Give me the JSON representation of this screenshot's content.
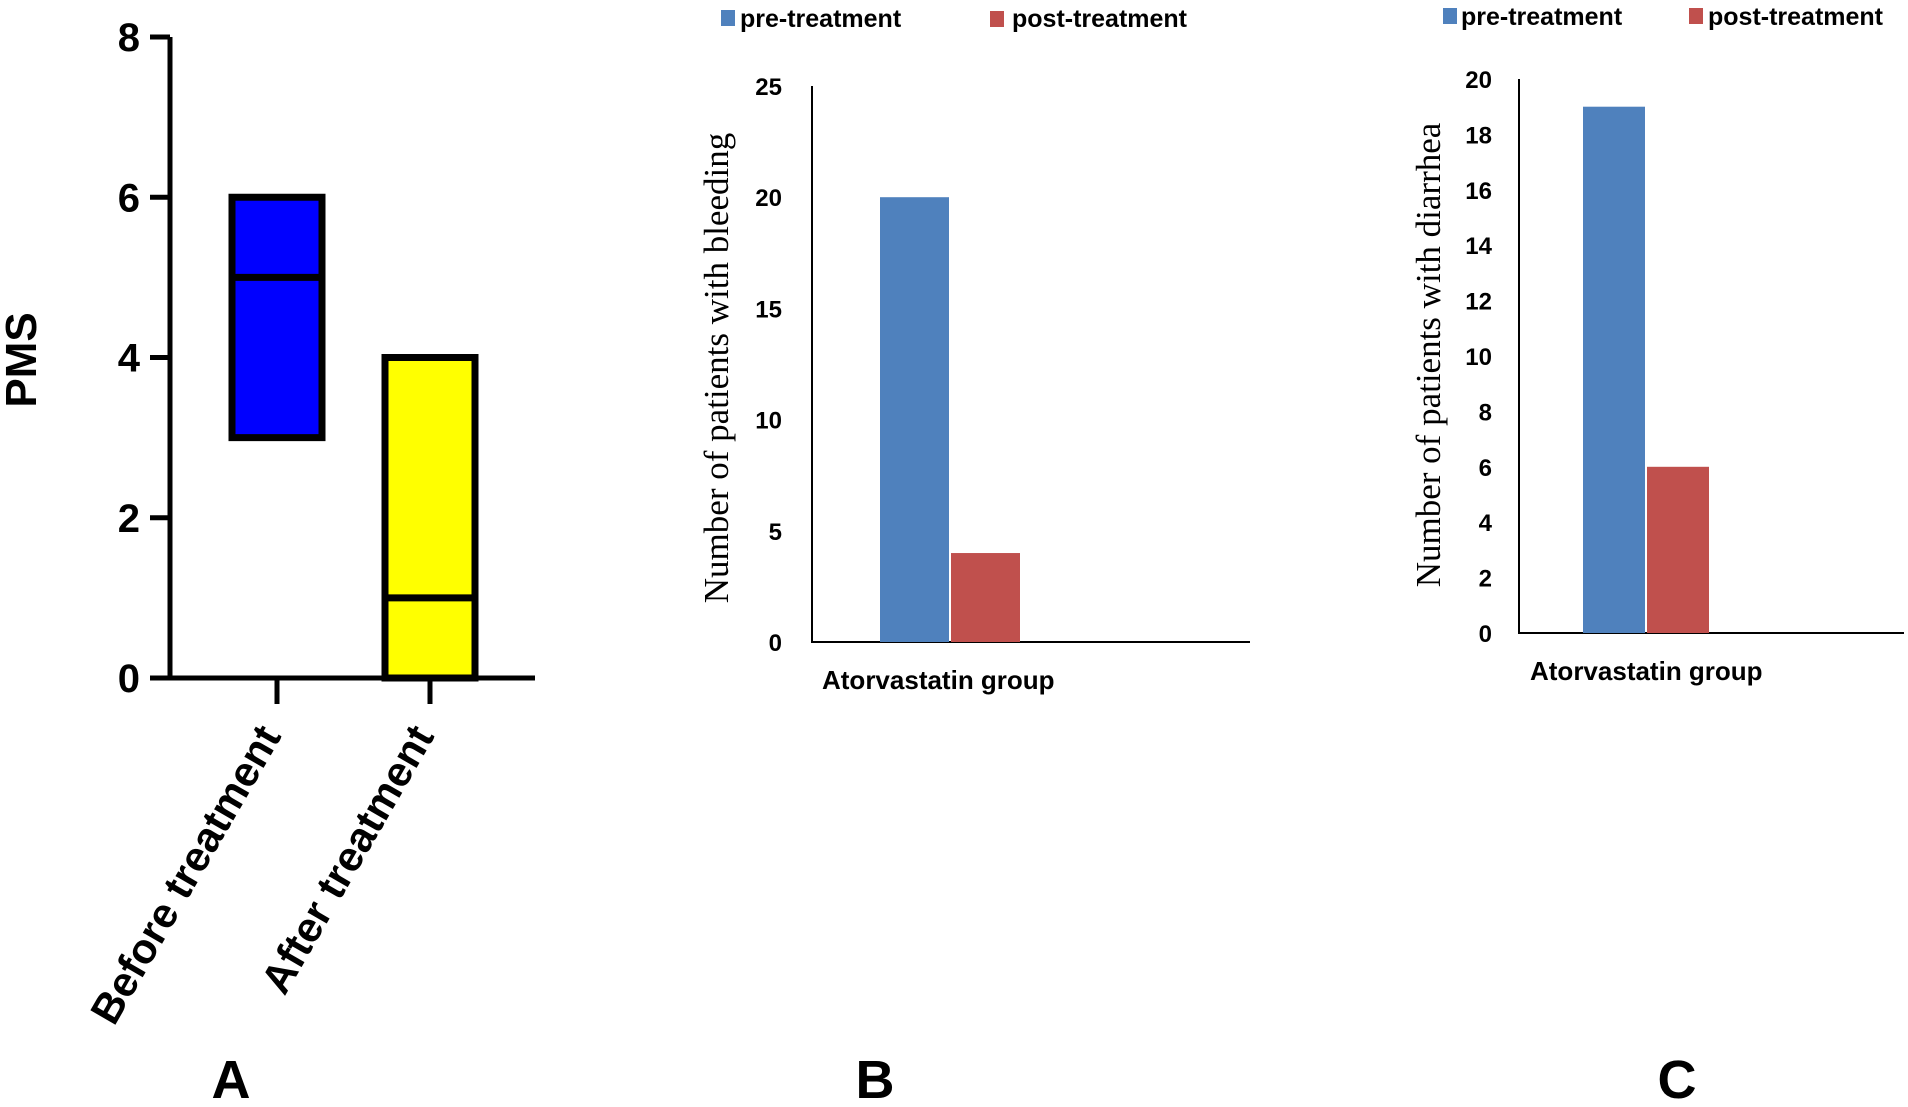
{
  "chart_data": [
    {
      "panel": "A",
      "type": "floating-bar",
      "ylabel": "PMS",
      "ylim": [
        0,
        8
      ],
      "yticks": [
        "0",
        "2",
        "4",
        "6",
        "8"
      ],
      "categories": [
        "Before treatment",
        "After treatment"
      ],
      "ranges": [
        {
          "name": "Before treatment",
          "min": 3,
          "max": 6,
          "median": 5,
          "color": "#0000ff"
        },
        {
          "name": "After treatment",
          "min": 0,
          "max": 4,
          "median": 1,
          "color": "#ffff00"
        }
      ]
    },
    {
      "panel": "B",
      "type": "bar",
      "ylabel": "Number of patients with bleeding",
      "ylim": [
        0,
        25
      ],
      "yticks": [
        "0",
        "5",
        "10",
        "15",
        "20",
        "25"
      ],
      "categories": [
        "Atorvastatin group"
      ],
      "series": [
        {
          "name": "pre-treatment",
          "values": [
            20
          ],
          "color": "#4f81bd"
        },
        {
          "name": "post-treatment",
          "values": [
            4
          ],
          "color": "#c0504d"
        }
      ],
      "legend": "top"
    },
    {
      "panel": "C",
      "type": "bar",
      "ylabel": "Number of patients with diarrhea",
      "ylim": [
        0,
        20
      ],
      "yticks": [
        "0",
        "2",
        "4",
        "6",
        "8",
        "10",
        "12",
        "14",
        "16",
        "18",
        "20"
      ],
      "categories": [
        "Atorvastatin group"
      ],
      "series": [
        {
          "name": "pre-treatment",
          "values": [
            19
          ],
          "color": "#4f81bd"
        },
        {
          "name": "post-treatment",
          "values": [
            6
          ],
          "color": "#c0504d"
        }
      ],
      "legend": "top"
    }
  ]
}
